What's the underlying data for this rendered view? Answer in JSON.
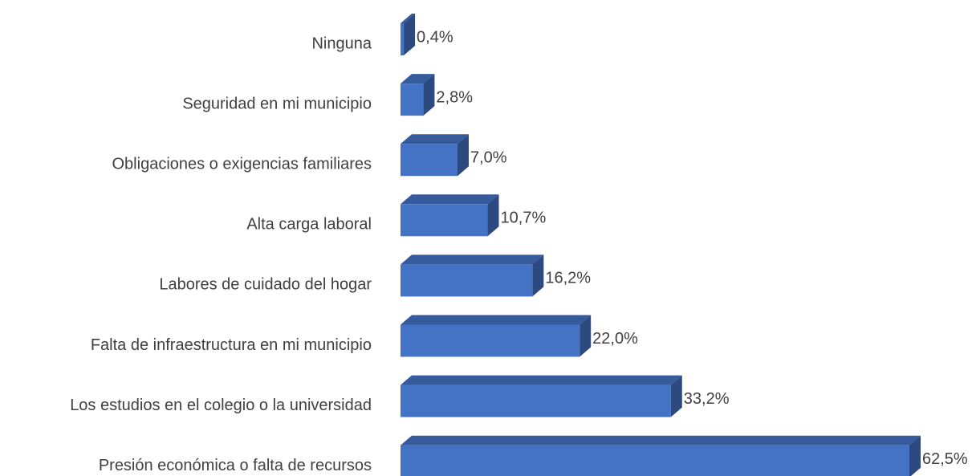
{
  "chart_data": {
    "type": "bar3d_horizontal",
    "categories": [
      "Ninguna",
      "Seguridad en mi municipio",
      "Obligaciones o exigencias familiares",
      "Alta carga laboral",
      "Labores de cuidado del hogar",
      "Falta de infraestructura en mi municipio",
      "Los estudios en el colegio o la universidad",
      "Presión económica o falta de recursos"
    ],
    "values": [
      0.4,
      2.8,
      7.0,
      10.7,
      16.2,
      22.0,
      33.2,
      62.5
    ],
    "value_labels": [
      "0,4%",
      "2,8%",
      "7,0%",
      "10,7%",
      "16,2%",
      "22,0%",
      "33,2%",
      "62,5%"
    ],
    "color": "#4472c4"
  }
}
